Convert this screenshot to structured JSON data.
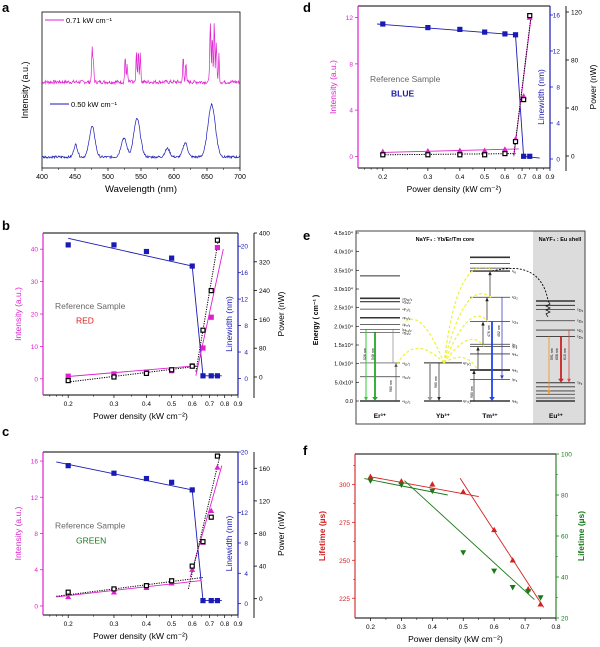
{
  "figure": {
    "panel_labels": [
      "a",
      "b",
      "c",
      "d",
      "e",
      "f"
    ],
    "colors": {
      "magenta": "#e020d0",
      "blue": "#1a1ab4",
      "black": "#000000",
      "red": "#d42020",
      "green": "#1a7a1a",
      "gray_text": "#666666",
      "yellow_arrow": "#f0f040",
      "shell_bg": "#dcdcdc",
      "orange": "#f09020"
    }
  },
  "chart_data": [
    {
      "id": "a",
      "type": "line",
      "title": "",
      "xlabel": "Wavelength (nm)",
      "ylabel": "Intensity (a.u.)",
      "xlim": [
        400,
        700
      ],
      "xticks": [
        "400",
        "450",
        "500",
        "550",
        "600",
        "650",
        "700"
      ],
      "legend": [
        {
          "name": "0.71 kW cm⁻¹",
          "color": "#e020d0",
          "placement": "top-left"
        },
        {
          "name": "0.50 kW cm⁻¹",
          "color": "#1a1ab4",
          "placement": "middle-left"
        }
      ],
      "series": [
        {
          "name": "0.71 kW cm-1",
          "color": "#e020d0",
          "baseline": 0.55,
          "peaks": [
            [
              476,
              0.35,
              1.2
            ],
            [
              478,
              0.2,
              1
            ],
            [
              526,
              0.28,
              1
            ],
            [
              529,
              0.2,
              1
            ],
            [
              543,
              0.3,
              1.2
            ],
            [
              546,
              0.35,
              1
            ],
            [
              549,
              0.32,
              1
            ],
            [
              614,
              0.28,
              1
            ],
            [
              618,
              0.22,
              1
            ],
            [
              655,
              0.62,
              1.2
            ],
            [
              658,
              0.5,
              1
            ],
            [
              661,
              0.65,
              1
            ],
            [
              664,
              0.42,
              1.2
            ],
            [
              668,
              0.3,
              1
            ]
          ]
        },
        {
          "name": "0.50 kW cm-1",
          "color": "#1a1ab4",
          "baseline": 0.0,
          "peaks": [
            [
              451,
              0.13,
              4
            ],
            [
              476,
              0.32,
              6
            ],
            [
              524,
              0.2,
              6
            ],
            [
              544,
              0.4,
              7
            ],
            [
              590,
              0.09,
              5
            ],
            [
              617,
              0.15,
              5
            ],
            [
              657,
              0.55,
              8
            ]
          ]
        }
      ]
    },
    {
      "id": "b",
      "type": "scatter",
      "xlabel": "Power density (kW cm⁻²)",
      "xscale": "log",
      "xlim": [
        0.16,
        0.9
      ],
      "xticks": [
        "0.2",
        "0.3",
        "0.4",
        "0.5",
        "0.6",
        "0.7",
        "0.8",
        "0.9"
      ],
      "annotations": [
        "Reference Sample",
        "RED"
      ],
      "axes": {
        "left": {
          "label": "Intensity (a.u.)",
          "lim": [
            -5,
            45
          ],
          "ticks": [
            "0",
            "10",
            "20",
            "30",
            "40"
          ],
          "color": "#e020d0"
        },
        "right1": {
          "label": "Linewidth (nm)",
          "lim": [
            -2.5,
            22
          ],
          "ticks": [
            "0",
            "4",
            "8",
            "12",
            "16",
            "20"
          ],
          "color": "#1a1ab4"
        },
        "right2": {
          "label": "Power (nW)",
          "lim": [
            -50,
            400
          ],
          "ticks": [
            "0",
            "80",
            "160",
            "240",
            "320",
            "400"
          ],
          "color": "#000000"
        }
      },
      "series": [
        {
          "name": "Intensity",
          "axis": "left",
          "color": "#e020d0",
          "marker": "square",
          "x": [
            0.2,
            0.3,
            0.4,
            0.5,
            0.6,
            0.66,
            0.71,
            0.75
          ],
          "y": [
            0.8,
            1.5,
            2.0,
            2.5,
            4.0,
            9.5,
            19,
            40.5
          ]
        },
        {
          "name": "Linewidth",
          "axis": "right1",
          "color": "#1a1ab4",
          "marker": "square",
          "x": [
            0.2,
            0.3,
            0.4,
            0.5,
            0.6,
            0.66,
            0.71,
            0.75
          ],
          "y": [
            20.2,
            20.2,
            19.2,
            18.2,
            17.0,
            0.4,
            0.4,
            0.4
          ]
        },
        {
          "name": "Power",
          "axis": "right2",
          "color": "#000000",
          "marker": "open-square",
          "x": [
            0.2,
            0.3,
            0.4,
            0.5,
            0.6,
            0.66,
            0.71,
            0.75
          ],
          "y": [
            -10,
            0,
            10,
            20,
            30,
            130,
            240,
            380
          ]
        }
      ]
    },
    {
      "id": "c",
      "type": "scatter",
      "xlabel": "Power density (kW cm⁻²)",
      "xscale": "log",
      "xlim": [
        0.16,
        0.9
      ],
      "xticks": [
        "0.2",
        "0.3",
        "0.4",
        "0.5",
        "0.6",
        "0.7",
        "0.8",
        "0.9"
      ],
      "annotations": [
        "Reference Sample",
        "GREEN"
      ],
      "axes": {
        "left": {
          "label": "Intensity (a.u.)",
          "lim": [
            -1,
            17
          ],
          "ticks": [
            "0",
            "4",
            "8",
            "12",
            "16"
          ],
          "color": "#e020d0"
        },
        "right1": {
          "label": "Linewidth (nm)",
          "lim": [
            -1.5,
            20
          ],
          "ticks": [
            "0",
            "4",
            "8",
            "12",
            "16",
            "20"
          ],
          "color": "#1a1ab4"
        },
        "right2": {
          "label": "Power (nW)",
          "lim": [
            -20,
            180
          ],
          "ticks": [
            "0",
            "40",
            "80",
            "120",
            "160"
          ],
          "color": "#000000"
        }
      },
      "series": [
        {
          "name": "Intensity",
          "axis": "left",
          "color": "#e020d0",
          "marker": "triangle",
          "x": [
            0.2,
            0.3,
            0.4,
            0.5,
            0.6,
            0.66,
            0.71,
            0.75
          ],
          "y": [
            1.0,
            1.5,
            2.0,
            2.5,
            4.0,
            7.0,
            10.5,
            15.3
          ]
        },
        {
          "name": "Linewidth",
          "axis": "right1",
          "color": "#1a1ab4",
          "marker": "square",
          "x": [
            0.2,
            0.3,
            0.4,
            0.5,
            0.6,
            0.66,
            0.71,
            0.75
          ],
          "y": [
            18.2,
            17.2,
            16.5,
            16.0,
            15.0,
            0.4,
            0.4,
            0.4
          ]
        },
        {
          "name": "Power",
          "axis": "right2",
          "color": "#000000",
          "marker": "open-square",
          "x": [
            0.2,
            0.3,
            0.4,
            0.5,
            0.6,
            0.66,
            0.71,
            0.75
          ],
          "y": [
            8,
            12,
            16,
            22,
            40,
            70,
            100,
            175
          ]
        }
      ]
    },
    {
      "id": "d",
      "type": "scatter",
      "xlabel": "Power density (kW cm⁻²)",
      "xscale": "log",
      "xlim": [
        0.16,
        0.9
      ],
      "xticks": [
        "0.2",
        "0.3",
        "0.4",
        "0.5",
        "0.6",
        "0.7",
        "0.8",
        "0.9"
      ],
      "annotations": [
        "Reference Sample",
        "BLUE"
      ],
      "axes": {
        "left": {
          "label": "Intensity (a.u.)",
          "lim": [
            -1,
            13
          ],
          "ticks": [
            "0",
            "4",
            "8",
            "12"
          ],
          "color": "#e020d0"
        },
        "right1": {
          "label": "Linewidth (nm)",
          "lim": [
            -1,
            17
          ],
          "ticks": [
            "0",
            "4",
            "8",
            "12",
            "16"
          ],
          "color": "#1a1ab4"
        },
        "right2": {
          "label": "Power (nW)",
          "lim": [
            -10,
            125
          ],
          "ticks": [
            "0",
            "40",
            "80",
            "120"
          ],
          "color": "#000000"
        }
      },
      "series": [
        {
          "name": "Intensity",
          "axis": "left",
          "color": "#e020d0",
          "marker": "triangle",
          "x": [
            0.2,
            0.3,
            0.4,
            0.5,
            0.6,
            0.66,
            0.71,
            0.75
          ],
          "y": [
            0.4,
            0.45,
            0.5,
            0.5,
            0.6,
            1.5,
            5.2,
            12.0
          ]
        },
        {
          "name": "Linewidth",
          "axis": "right1",
          "color": "#1a1ab4",
          "marker": "square",
          "x": [
            0.2,
            0.3,
            0.4,
            0.5,
            0.6,
            0.66,
            0.71,
            0.75
          ],
          "y": [
            15.0,
            14.6,
            14.4,
            14.1,
            13.9,
            13.8,
            0.3,
            0.3
          ]
        },
        {
          "name": "Power",
          "axis": "right2",
          "color": "#000000",
          "marker": "open-square",
          "x": [
            0.2,
            0.3,
            0.4,
            0.5,
            0.6,
            0.66,
            0.71,
            0.75
          ],
          "y": [
            1,
            1,
            1,
            1,
            2,
            12,
            47,
            117
          ]
        }
      ]
    },
    {
      "id": "f",
      "type": "scatter",
      "xlabel": "Power density (kW cm⁻²)",
      "xlim": [
        0.15,
        0.8
      ],
      "xticks": [
        "0.2",
        "0.3",
        "0.4",
        "0.5",
        "0.6",
        "0.7",
        "0.8"
      ],
      "axes": {
        "left": {
          "label": "Lifetime (µs)",
          "lim": [
            212,
            320
          ],
          "ticks": [
            "225",
            "250",
            "275",
            "300"
          ],
          "color": "#d42020"
        },
        "right": {
          "label": "Lifetime (µs)",
          "lim": [
            20,
            100
          ],
          "ticks": [
            "20",
            "40",
            "60",
            "80",
            "100"
          ],
          "color": "#1a7a1a"
        }
      },
      "series": [
        {
          "name": "Red lifetime",
          "axis": "left",
          "color": "#d42020",
          "marker": "triangle",
          "x": [
            0.2,
            0.3,
            0.4,
            0.5,
            0.6,
            0.66,
            0.71,
            0.75
          ],
          "y": [
            305,
            302,
            300,
            295,
            270,
            250,
            231,
            221
          ],
          "fits": [
            [
              [
                0.2,
                305
              ],
              [
                0.55,
                292
              ]
            ],
            [
              [
                0.49,
                304
              ],
              [
                0.76,
                219
              ]
            ]
          ]
        },
        {
          "name": "Green lifetime",
          "axis": "right",
          "color": "#1a7a1a",
          "marker": "down-triangle",
          "x": [
            0.2,
            0.3,
            0.4,
            0.5,
            0.6,
            0.66,
            0.71,
            0.75
          ],
          "y": [
            87,
            85,
            82,
            52,
            43,
            35,
            33,
            30
          ],
          "fits": [
            [
              [
                0.18,
                88
              ],
              [
                0.45,
                80
              ]
            ],
            [
              [
                0.31,
                87
              ],
              [
                0.73,
                29
              ]
            ]
          ]
        }
      ]
    }
  ],
  "diagram_e": {
    "ylabel": "Energy ( cm⁻¹ )",
    "yticks": [
      "0.0",
      "5.0x10³",
      "1.0x10⁴",
      "1.5x10⁴",
      "2.0x10⁴",
      "2.5x10⁴",
      "3.0x10⁴",
      "3.5x10⁴",
      "4.0x10⁴",
      "4.5x10⁴"
    ],
    "core_title": "NaYF₄ : Yb/Er/Tm  core",
    "shell_title": "NaYF₄ : Eu  shell",
    "ions": [
      "Er³⁺",
      "Yb³⁺",
      "Tm³⁺",
      "Eu³⁺"
    ],
    "er_levels": [
      "⁴I₁₅/₂",
      "⁴I₁₃/₂",
      "⁴I₁₁/₂",
      "⁴S₃/₂",
      "²H₁₁/₂",
      "⁴F₇/₂",
      "⁴F₅/₂",
      "⁴F₃/₂",
      "²G₉/₂",
      "⁴G₁₁/₂"
    ],
    "yb_levels": [
      "²F₇/₂",
      "²F₅/₂"
    ],
    "tm_levels": [
      "³H₆",
      "³F₄",
      "³H₅",
      "³H₄",
      "³F₃",
      "³F₂",
      "¹G₄",
      "¹D₂",
      "¹I₆"
    ],
    "eu_levels": [
      "⁷Fₓ",
      "⁵D₀",
      "⁵D₁",
      "⁵D₂",
      "⁵D₃"
    ],
    "wavelength_labels": {
      "er": [
        "526 nm",
        "548 nm",
        "980 nm"
      ],
      "yb": [
        "980 nm"
      ],
      "tm": [
        "476 nm",
        "452 nm",
        "980 nm"
      ],
      "eu": [
        "591 nm",
        "658 nm",
        "615 nm"
      ]
    }
  }
}
